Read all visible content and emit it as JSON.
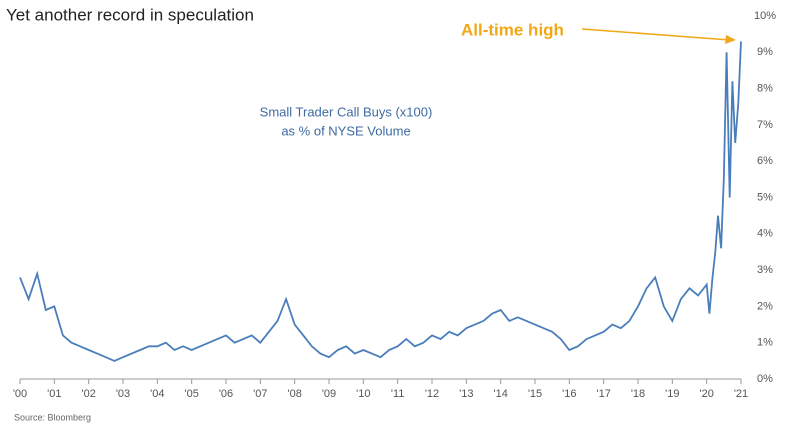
{
  "chart_data": {
    "type": "line",
    "title": "Yet another record in speculation",
    "annotations": [
      "Small Trader Call Buys (x100)",
      "as % of NYSE Volume",
      "All-time high"
    ],
    "source": "Source: Bloomberg",
    "x": [
      2000,
      2000.25,
      2000.5,
      2000.75,
      2001,
      2001.25,
      2001.5,
      2001.75,
      2002,
      2002.25,
      2002.5,
      2002.75,
      2003,
      2003.25,
      2003.5,
      2003.75,
      2004,
      2004.25,
      2004.5,
      2004.75,
      2005,
      2005.25,
      2005.5,
      2005.75,
      2006,
      2006.25,
      2006.5,
      2006.75,
      2007,
      2007.25,
      2007.5,
      2007.75,
      2008,
      2008.25,
      2008.5,
      2008.75,
      2009,
      2009.25,
      2009.5,
      2009.75,
      2010,
      2010.25,
      2010.5,
      2010.75,
      2011,
      2011.25,
      2011.5,
      2011.75,
      2012,
      2012.25,
      2012.5,
      2012.75,
      2013,
      2013.25,
      2013.5,
      2013.75,
      2014,
      2014.25,
      2014.5,
      2014.75,
      2015,
      2015.25,
      2015.5,
      2015.75,
      2016,
      2016.25,
      2016.5,
      2016.75,
      2017,
      2017.25,
      2017.5,
      2017.75,
      2018,
      2018.25,
      2018.5,
      2018.75,
      2019,
      2019.25,
      2019.5,
      2019.75,
      2020,
      2020.08,
      2020.17,
      2020.25,
      2020.33,
      2020.42,
      2020.5,
      2020.58,
      2020.67,
      2020.75,
      2020.83,
      2020.92,
      2021
    ],
    "series": [
      {
        "name": "Small Trader Call Buys",
        "color": "#4a7ebb",
        "values": [
          2.8,
          2.2,
          2.9,
          1.9,
          2.0,
          1.2,
          1.0,
          0.9,
          0.8,
          0.7,
          0.6,
          0.5,
          0.6,
          0.7,
          0.8,
          0.9,
          0.9,
          1.0,
          0.8,
          0.9,
          0.8,
          0.9,
          1.0,
          1.1,
          1.2,
          1.0,
          1.1,
          1.2,
          1.0,
          1.3,
          1.6,
          2.2,
          1.5,
          1.2,
          0.9,
          0.7,
          0.6,
          0.8,
          0.9,
          0.7,
          0.8,
          0.7,
          0.6,
          0.8,
          0.9,
          1.1,
          0.9,
          1.0,
          1.2,
          1.1,
          1.3,
          1.2,
          1.4,
          1.5,
          1.6,
          1.8,
          1.9,
          1.6,
          1.7,
          1.6,
          1.5,
          1.4,
          1.3,
          1.1,
          0.8,
          0.9,
          1.1,
          1.2,
          1.3,
          1.5,
          1.4,
          1.6,
          2.0,
          2.5,
          2.8,
          2.0,
          1.6,
          2.2,
          2.5,
          2.3,
          2.6,
          1.8,
          2.8,
          3.5,
          4.5,
          3.6,
          5.5,
          9.0,
          5.0,
          8.2,
          6.5,
          7.6,
          9.3
        ]
      }
    ],
    "xlim": [
      2000,
      2021
    ],
    "xticks": [
      {
        "value": 2000,
        "label": "'00"
      },
      {
        "value": 2001,
        "label": "'01"
      },
      {
        "value": 2002,
        "label": "'02"
      },
      {
        "value": 2003,
        "label": "'03"
      },
      {
        "value": 2004,
        "label": "'04"
      },
      {
        "value": 2005,
        "label": "'05"
      },
      {
        "value": 2006,
        "label": "'06"
      },
      {
        "value": 2007,
        "label": "'07"
      },
      {
        "value": 2008,
        "label": "'08"
      },
      {
        "value": 2009,
        "label": "'09"
      },
      {
        "value": 2010,
        "label": "'10"
      },
      {
        "value": 2011,
        "label": "'11"
      },
      {
        "value": 2012,
        "label": "'12"
      },
      {
        "value": 2013,
        "label": "'13"
      },
      {
        "value": 2014,
        "label": "'14"
      },
      {
        "value": 2015,
        "label": "'15"
      },
      {
        "value": 2016,
        "label": "'16"
      },
      {
        "value": 2017,
        "label": "'17"
      },
      {
        "value": 2018,
        "label": "'18"
      },
      {
        "value": 2019,
        "label": "'19"
      },
      {
        "value": 2020,
        "label": "'20"
      },
      {
        "value": 2021,
        "label": "'21"
      }
    ],
    "ylim": [
      0,
      10
    ],
    "yticks": [
      {
        "value": 0,
        "label": "0%"
      },
      {
        "value": 1,
        "label": "1%"
      },
      {
        "value": 2,
        "label": "2%"
      },
      {
        "value": 3,
        "label": "3%"
      },
      {
        "value": 4,
        "label": "4%"
      },
      {
        "value": 5,
        "label": "5%"
      },
      {
        "value": 6,
        "label": "6%"
      },
      {
        "value": 7,
        "label": "7%"
      },
      {
        "value": 8,
        "label": "8%"
      },
      {
        "value": 9,
        "label": "9%"
      },
      {
        "value": 10,
        "label": "10%"
      }
    ],
    "grid": false
  }
}
